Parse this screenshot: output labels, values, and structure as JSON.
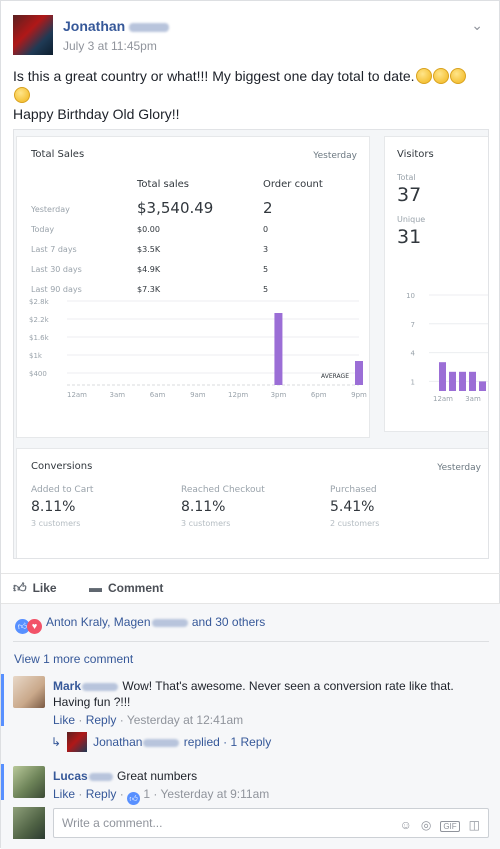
{
  "post": {
    "author_first": "Jonathan",
    "timestamp": "July 3 at 11:45pm",
    "text_line1": "Is this a great country or what!!! My biggest one day total to date.",
    "text_line3": "Happy Birthday Old Glory!!"
  },
  "dashboard": {
    "sales": {
      "title": "Total Sales",
      "period": "Yesterday",
      "col_total": "Total sales",
      "col_orders": "Order count",
      "rows": [
        {
          "label": "Yesterday",
          "total": "$3,540.49",
          "orders": "2"
        },
        {
          "label": "Today",
          "total": "$0.00",
          "orders": "0"
        },
        {
          "label": "Last 7 days",
          "total": "$3.5K",
          "orders": "3"
        },
        {
          "label": "Last 30 days",
          "total": "$4.9K",
          "orders": "5"
        },
        {
          "label": "Last 90 days",
          "total": "$7.3K",
          "orders": "5"
        }
      ]
    },
    "visitors": {
      "title": "Visitors",
      "total_label": "Total",
      "total_value": "37",
      "unique_label": "Unique",
      "unique_value": "31"
    },
    "conversions": {
      "title": "Conversions",
      "period": "Yesterday",
      "items": [
        {
          "label": "Added to Cart",
          "value": "8.11%",
          "sub": "3 customers"
        },
        {
          "label": "Reached Checkout",
          "value": "8.11%",
          "sub": "3 customers"
        },
        {
          "label": "Purchased",
          "value": "5.41%",
          "sub": "2 customers"
        }
      ]
    }
  },
  "chart_data": [
    {
      "type": "bar",
      "title": "",
      "categories": [
        "12am",
        "3am",
        "6am",
        "9am",
        "12pm",
        "3pm",
        "6pm",
        "9pm"
      ],
      "y_ticks": [
        "$400",
        "$1k",
        "$1.6k",
        "$2.2k",
        "$2.8k"
      ],
      "ylim": [
        0,
        2800
      ],
      "bars": [
        {
          "x": "3pm",
          "value": 2400
        },
        {
          "x": "9pm",
          "value": 800
        }
      ],
      "annotation": "AVERAGE",
      "color": "#9b6ed6"
    },
    {
      "type": "bar",
      "title": "",
      "x_ticks": [
        "12am",
        "3am"
      ],
      "y_ticks": [
        "1",
        "4",
        "7",
        "10"
      ],
      "ylim": [
        0,
        10
      ],
      "values": [
        3,
        2,
        2,
        2,
        1
      ],
      "color": "#9b6ed6"
    }
  ],
  "actions": {
    "like": "Like",
    "comment": "Comment"
  },
  "reactions": {
    "text_a": "Anton Kraly, Magen",
    "text_b": "and 30 others"
  },
  "view_more": "View 1 more comment",
  "comments": [
    {
      "name": "Mark",
      "text": "Wow! That's awesome. Never seen a conversion rate like that. Having fun ?!!!",
      "like": "Like",
      "reply": "Reply",
      "time": "Yesterday at 12:41am"
    },
    {
      "name": "Lucas",
      "text": "Great numbers",
      "like": "Like",
      "reply": "Reply",
      "likes": "1",
      "time": "Yesterday at 9:11am"
    }
  ],
  "reply_thread": {
    "name": "Jonathan",
    "action": "replied",
    "count": "1 Reply"
  },
  "composer": {
    "placeholder": "Write a comment..."
  },
  "colors": {
    "link": "#365899",
    "bar": "#9b6ed6",
    "like": "#5890ff",
    "love": "#f25268"
  }
}
